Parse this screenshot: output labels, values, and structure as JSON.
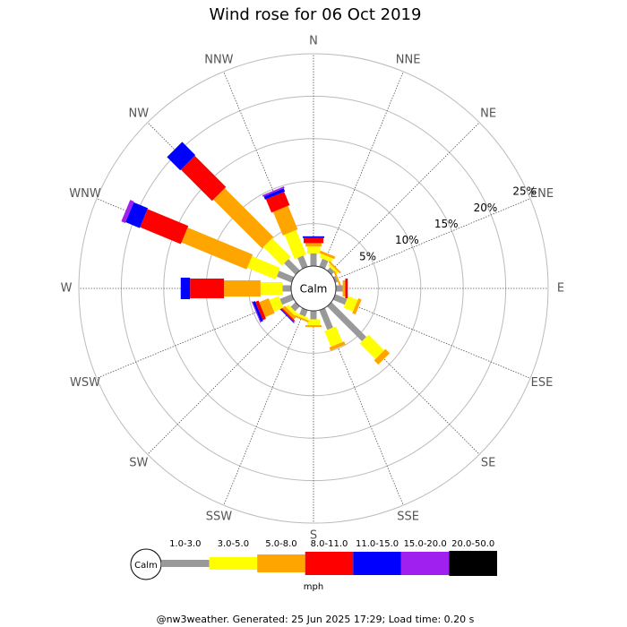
{
  "chart_data": {
    "type": "windrose",
    "title": "Wind rose for 06 Oct 2019",
    "categories": [
      "N",
      "NNE",
      "NE",
      "ENE",
      "E",
      "ESE",
      "SE",
      "SSE",
      "S",
      "SSW",
      "SW",
      "WSW",
      "W",
      "WNW",
      "NW",
      "NNW"
    ],
    "series": [
      {
        "name": "1.0-3.0",
        "color": "#999999",
        "values": [
          1.5,
          1.0,
          0.5,
          0.3,
          0.8,
          1.5,
          5.8,
          2.5,
          1.0,
          0.8,
          0.8,
          1.5,
          1.0,
          1.9,
          1.9,
          1.4
        ]
      },
      {
        "name": "3.0-5.0",
        "color": "#ffff00",
        "values": [
          0.8,
          0.5,
          0.3,
          0,
          0,
          1.2,
          2.6,
          2.0,
          0.7,
          0.3,
          0.4,
          1.2,
          2.6,
          3.6,
          3.1,
          3.1
        ]
      },
      {
        "name": "5.0-8.0",
        "color": "#ffa500",
        "values": [
          0.4,
          0.3,
          0.2,
          0.2,
          0.3,
          0.4,
          0.7,
          0.4,
          0.2,
          0.2,
          0.4,
          1.2,
          4.3,
          8.3,
          8.1,
          3.0
        ]
      },
      {
        "name": "8.0-11.0",
        "color": "#ff0000",
        "values": [
          0.6,
          0,
          0,
          0,
          0.3,
          0,
          0,
          0,
          0,
          0,
          0.2,
          0.4,
          4.0,
          5.2,
          5.2,
          1.7
        ]
      },
      {
        "name": "11.0-15.0",
        "color": "#0000ff",
        "values": [
          0.2,
          0,
          0,
          0,
          0,
          0,
          0,
          0,
          0,
          0,
          0.1,
          0.3,
          1.1,
          1.8,
          2.2,
          0.4
        ]
      },
      {
        "name": "15.0-20.0",
        "color": "#a020f0",
        "values": [
          0,
          0,
          0,
          0,
          0,
          0,
          0,
          0,
          0,
          0,
          0,
          0.1,
          0,
          0.5,
          0,
          0.2
        ]
      },
      {
        "name": "20.0-50.0",
        "color": "#000000",
        "values": [
          0,
          0,
          0,
          0,
          0,
          0,
          0,
          0,
          0,
          0,
          0,
          0,
          0,
          0,
          0,
          0
        ]
      }
    ],
    "rlim": [
      0,
      25
    ],
    "rticks": [
      {
        "value": 5,
        "label": "5%"
      },
      {
        "value": 10,
        "label": "10%"
      },
      {
        "value": 15,
        "label": "15%"
      },
      {
        "value": 20,
        "label": "20%"
      },
      {
        "value": 25,
        "label": "25%"
      }
    ],
    "calm_label": "Calm",
    "units": "mph",
    "footer": "@nw3weather. Generated: 25 Jun 2025 17:29; Load time: 0.20 s"
  }
}
